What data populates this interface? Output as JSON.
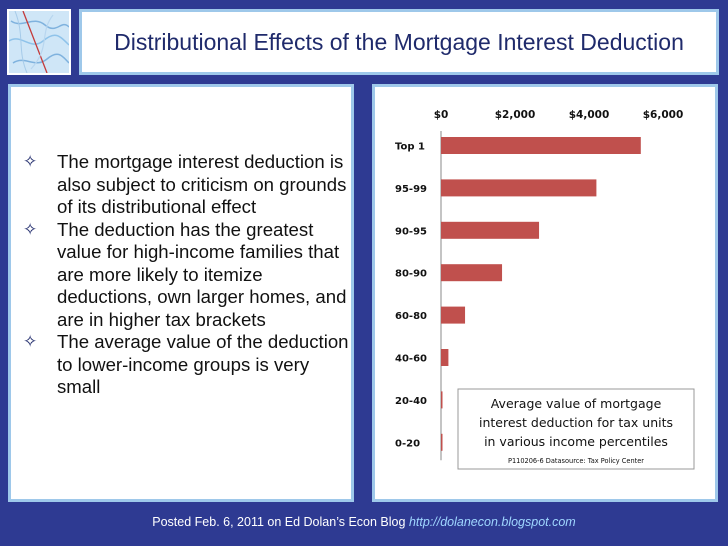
{
  "slide": {
    "title": "Distributional Effects of the Mortgage Interest Deduction",
    "bullets": [
      "The mortgage interest deduction is also subject to criticism on grounds of its distributional effect",
      "The deduction has the greatest value for high-income families that are more likely to itemize deductions, own larger homes, and are in higher tax brackets",
      "The average value of the deduction to lower-income groups is very small"
    ],
    "bullet_icon": "hollow-four-point-star-icon",
    "footer_text": "Posted Feb. 6, 2011 on Ed Dolan’s Econ Blog",
    "footer_link": "http://dolanecon.blogspot.com",
    "colors": {
      "background": "#2e3a92",
      "panel_border": "#9ec8ea",
      "title_text": "#1f2a6b",
      "bar": "#c0504d",
      "footer_link": "#9fd6ff"
    }
  },
  "chart_data": {
    "type": "bar",
    "orientation": "horizontal",
    "categories": [
      "Top 1",
      "95-99",
      "90-95",
      "80-90",
      "60-80",
      "40-60",
      "20-40",
      "0-20"
    ],
    "values": [
      5400,
      4200,
      2650,
      1650,
      650,
      200,
      20,
      5
    ],
    "tick_labels": [
      "$0",
      "$2,000",
      "$4,000",
      "$6,000"
    ],
    "tick_values": [
      0,
      2000,
      4000,
      6000
    ],
    "xlim": [
      0,
      6000
    ],
    "xaxis_position": "top",
    "grid": false,
    "annotation_title": "Average value of mortgage interest deduction for tax units in various income percentiles",
    "annotation_title_lines": [
      "Average value of mortgage",
      "interest deduction for tax units",
      "in various income percentiles"
    ],
    "annotation_source": "P110206-6 Datasource: Tax Policy Center"
  }
}
